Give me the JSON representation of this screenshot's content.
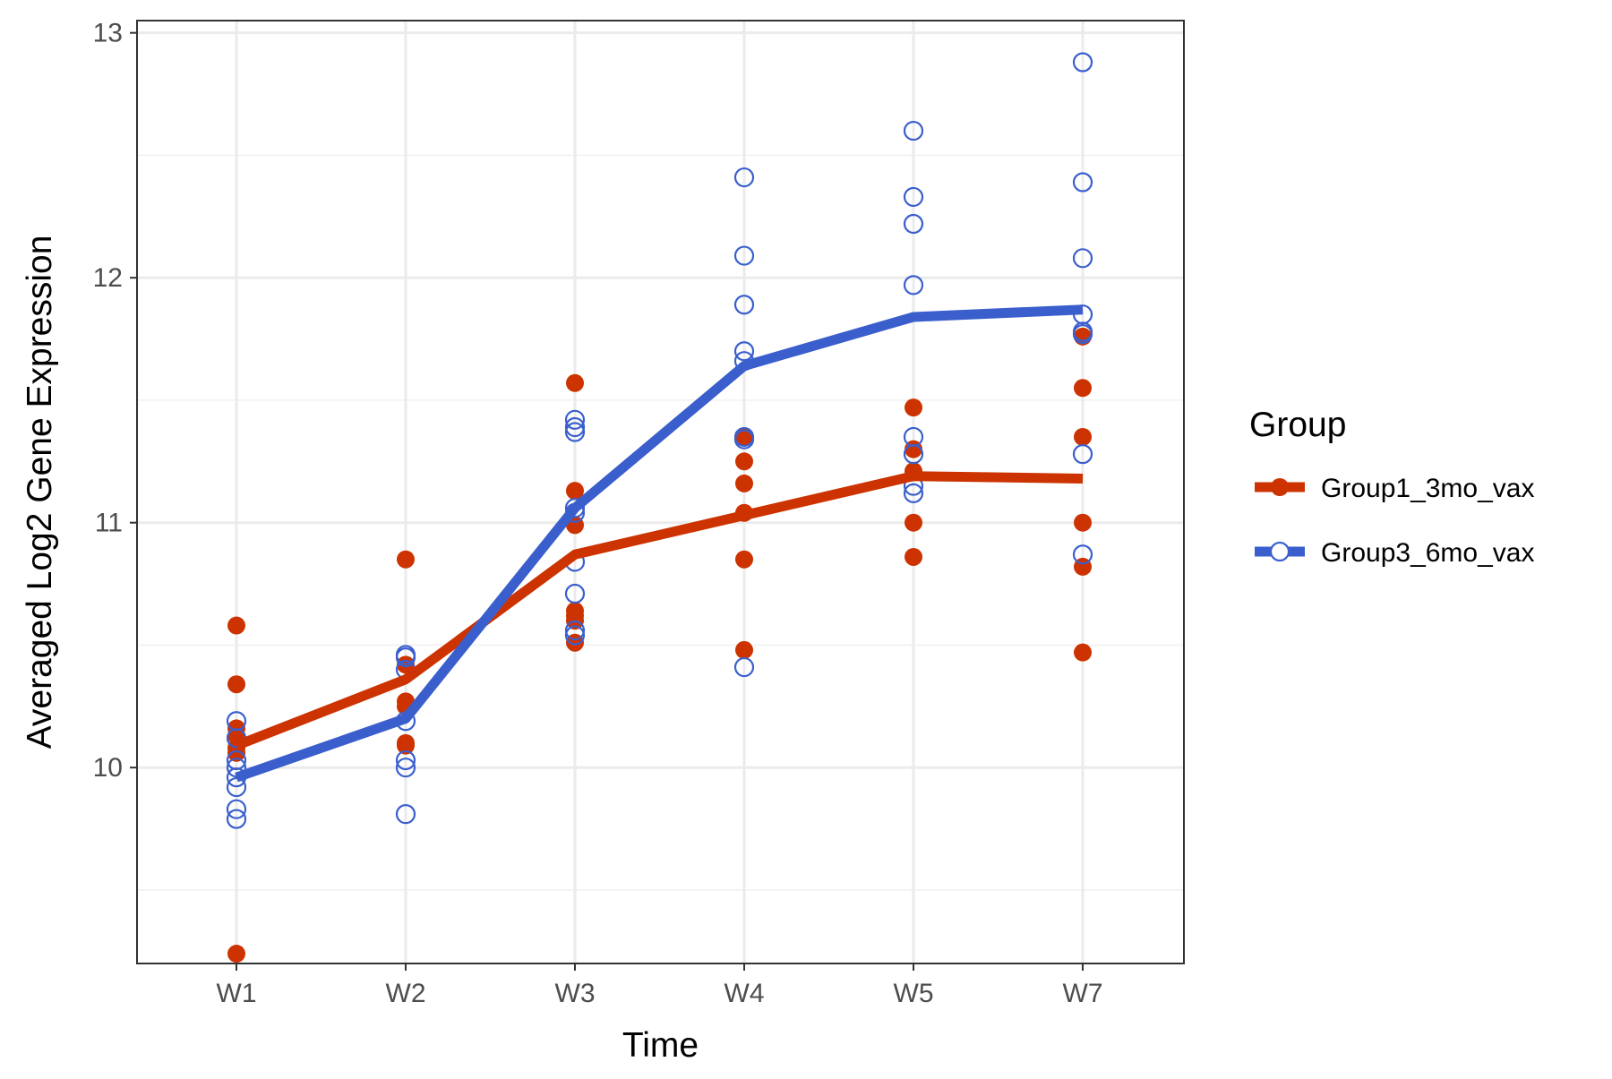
{
  "chart_data": {
    "type": "line",
    "title": "",
    "xlabel": "Time",
    "ylabel": "Averaged Log2 Gene Expression",
    "categories": [
      "W1",
      "W2",
      "W3",
      "W4",
      "W5",
      "W7"
    ],
    "ylim": [
      9.2,
      13.05
    ],
    "yticks": [
      10,
      11,
      12,
      13
    ],
    "grid": true,
    "legend": {
      "title": "Group",
      "placement": "right"
    },
    "series": [
      {
        "name": "Group1_3mo_vax",
        "color": "#CC3300",
        "marker": "filled-circle",
        "mean": [
          10.09,
          10.36,
          10.87,
          11.03,
          11.19,
          11.18
        ],
        "points": [
          [
            10.58,
            10.34,
            10.16,
            10.13,
            10.08,
            10.06,
            9.24
          ],
          [
            10.85,
            10.42,
            10.27,
            10.25,
            10.1,
            10.09
          ],
          [
            11.57,
            11.13,
            10.99,
            10.64,
            10.62,
            10.6,
            10.51
          ],
          [
            11.35,
            11.25,
            11.16,
            11.04,
            10.85,
            10.48
          ],
          [
            11.47,
            11.3,
            11.21,
            11.0,
            10.86
          ],
          [
            11.76,
            11.55,
            11.35,
            11.0,
            10.82,
            10.47
          ]
        ]
      },
      {
        "name": "Group3_6mo_vax",
        "color": "#3A5FCD",
        "marker": "open-circle",
        "mean": [
          9.96,
          10.2,
          11.06,
          11.64,
          11.84,
          11.87
        ],
        "points": [
          [
            10.19,
            10.12,
            10.03,
            10.0,
            9.96,
            9.92,
            9.83,
            9.79
          ],
          [
            10.46,
            10.45,
            10.4,
            10.19,
            10.03,
            10.0,
            9.81
          ],
          [
            11.42,
            11.39,
            11.37,
            11.06,
            11.04,
            10.84,
            10.71,
            10.56,
            10.54
          ],
          [
            12.41,
            12.09,
            11.89,
            11.7,
            11.66,
            11.35,
            11.34,
            10.41
          ],
          [
            12.6,
            12.33,
            12.22,
            11.97,
            11.35,
            11.28,
            11.15,
            11.12
          ],
          [
            12.88,
            12.39,
            12.08,
            11.85,
            11.78,
            11.77,
            11.28,
            10.87
          ]
        ]
      }
    ]
  }
}
